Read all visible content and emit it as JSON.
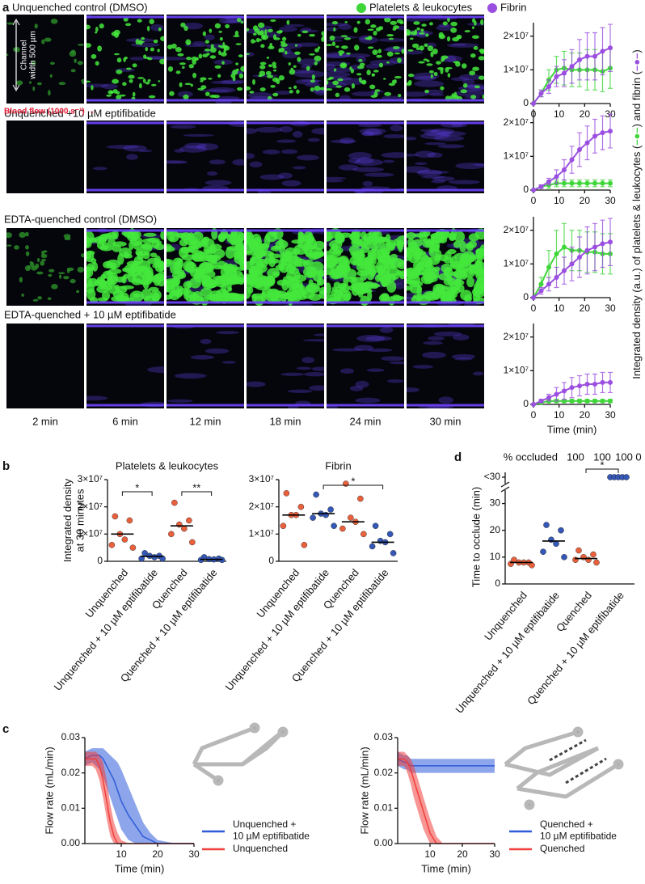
{
  "panel_labels": [
    "a",
    "b",
    "c",
    "d"
  ],
  "images": {
    "rows": [
      "Unquenched control (DMSO)",
      "Unquenched +10 µM eptifibatide",
      "EDTA-quenched control (DMSO)",
      "EDTA-quenched + 10 µM eptifibatide"
    ],
    "times": [
      "2 min",
      "6 min",
      "12 min",
      "18 min",
      "24 min",
      "30 min"
    ],
    "channel_label": [
      "Channel",
      "width 500 µm"
    ],
    "flow_label": "Blood flow (1000 s⁻¹) →"
  },
  "shared_ylabel": [
    "Integrated density (a.u.) of platelets & leukocytes (",
    "–●–",
    ") and fibrin (",
    "–●–",
    ")"
  ],
  "chart_data": [
    {
      "type": "line",
      "x": [
        0,
        3,
        6,
        9,
        12,
        15,
        18,
        21,
        24,
        27,
        30
      ],
      "series": [
        {
          "name": "Platelets & leukocytes",
          "color": "#3fd63a",
          "values": [
            0,
            3000000,
            7000000,
            10000000,
            10500000,
            10000000,
            10000000,
            10000000,
            10000000,
            9500000,
            10500000
          ],
          "errors": [
            0,
            1000000,
            3000000,
            4000000,
            5000000,
            5000000,
            5000000,
            6000000,
            6000000,
            6000000,
            6000000
          ]
        },
        {
          "name": "Fibrin",
          "color": "#9b4fe0",
          "values": [
            0,
            3000000,
            5000000,
            8000000,
            9000000,
            11000000,
            13000000,
            14000000,
            14000000,
            15500000,
            16500000
          ],
          "errors": [
            0,
            1000000,
            2000000,
            3000000,
            4000000,
            5000000,
            6000000,
            7000000,
            7000000,
            7000000,
            7000000
          ]
        }
      ],
      "xlim": [
        0,
        30
      ],
      "xticks": [
        0,
        10,
        20,
        30
      ],
      "ylim": [
        0,
        24000000
      ],
      "yticks": [
        0,
        {
          "value": 10000000,
          "label": "1×10⁷"
        },
        {
          "value": 20000000,
          "label": "2×10⁷"
        }
      ]
    },
    {
      "type": "line",
      "x": [
        0,
        3,
        6,
        9,
        12,
        15,
        18,
        21,
        24,
        27,
        30
      ],
      "series": [
        {
          "color": "#3fd63a",
          "values": [
            0,
            1000000,
            1500000,
            2000000,
            2000000,
            2000000,
            2000000,
            2000000,
            2000000,
            2000000,
            2000000
          ],
          "errors": [
            0,
            500000,
            1000000,
            1000000,
            1000000,
            1000000,
            1000000,
            1000000,
            1000000,
            1000000,
            1000000
          ]
        },
        {
          "color": "#9b4fe0",
          "values": [
            0,
            1000000,
            2500000,
            4000000,
            6000000,
            9000000,
            12000000,
            14000000,
            16000000,
            17000000,
            17500000
          ],
          "errors": [
            0,
            500000,
            1000000,
            2000000,
            3000000,
            4000000,
            5000000,
            5000000,
            5000000,
            5000000,
            5000000
          ]
        }
      ],
      "xlim": [
        0,
        30
      ],
      "xticks": [
        0,
        10,
        20,
        30
      ],
      "ylim": [
        0,
        24000000
      ],
      "yticks": [
        0,
        {
          "value": 10000000,
          "label": "1×10⁷"
        },
        {
          "value": 20000000,
          "label": "2×10⁷"
        }
      ]
    },
    {
      "type": "line",
      "x": [
        0,
        3,
        6,
        9,
        12,
        15,
        18,
        21,
        24,
        27,
        30
      ],
      "series": [
        {
          "color": "#3fd63a",
          "values": [
            0,
            4000000,
            9000000,
            13000000,
            15000000,
            14000000,
            14000000,
            13500000,
            13500000,
            13000000,
            13000000
          ],
          "errors": [
            0,
            2000000,
            5000000,
            7000000,
            7000000,
            6000000,
            6000000,
            6000000,
            6000000,
            6000000,
            6000000
          ]
        },
        {
          "color": "#9b4fe0",
          "values": [
            0,
            2000000,
            4000000,
            6000000,
            8000000,
            10000000,
            12000000,
            14000000,
            15000000,
            16000000,
            16500000
          ],
          "errors": [
            0,
            1000000,
            2000000,
            3000000,
            4000000,
            5000000,
            6000000,
            7000000,
            7000000,
            7000000,
            7000000
          ]
        }
      ],
      "xlim": [
        0,
        30
      ],
      "xticks": [
        0,
        10,
        20,
        30
      ],
      "ylim": [
        0,
        24000000
      ],
      "yticks": [
        0,
        {
          "value": 10000000,
          "label": "1×10⁷"
        },
        {
          "value": 20000000,
          "label": "2×10⁷"
        }
      ]
    },
    {
      "type": "line",
      "x": [
        0,
        3,
        6,
        9,
        12,
        15,
        18,
        21,
        24,
        27,
        30
      ],
      "series": [
        {
          "color": "#3fd63a",
          "values": [
            0,
            500000,
            1000000,
            1000000,
            1000000,
            1000000,
            1000000,
            1000000,
            1000000,
            1000000,
            1000000
          ],
          "errors": [
            0,
            300000,
            500000,
            500000,
            500000,
            500000,
            500000,
            500000,
            500000,
            500000,
            500000
          ]
        },
        {
          "color": "#9b4fe0",
          "values": [
            0,
            1000000,
            2000000,
            3000000,
            4000000,
            5000000,
            5500000,
            6000000,
            6000000,
            6500000,
            6500000
          ],
          "errors": [
            0,
            500000,
            1000000,
            2000000,
            2500000,
            3000000,
            3000000,
            3000000,
            3000000,
            3000000,
            3000000
          ]
        }
      ],
      "xlim": [
        0,
        30
      ],
      "xticks": [
        0,
        10,
        20,
        30
      ],
      "xlabel": "Time (min)",
      "ylim": [
        0,
        24000000
      ],
      "yticks": [
        0,
        {
          "value": 10000000,
          "label": "1×10⁷"
        },
        {
          "value": 20000000,
          "label": "2×10⁷"
        }
      ]
    },
    {
      "type": "dot",
      "title": "Platelets & leukocytes",
      "ylabel": "Integrated density\nat 30 minutes",
      "categories": [
        "Unquenched",
        "Unquenched + 10 µM eptifibatide",
        "Quenched",
        "Quenched + 10 µM eptifibatide"
      ],
      "colors": [
        "#e8603c",
        "#3557b5",
        "#e8603c",
        "#3557b5"
      ],
      "values": [
        [
          16500000,
          15000000,
          10000000,
          8000000,
          6000000,
          5000000
        ],
        [
          3000000,
          2000000,
          2000000,
          1500000,
          1000000,
          1000000
        ],
        [
          21500000,
          15000000,
          13500000,
          12000000,
          10000000,
          7000000
        ],
        [
          1500000,
          1000000,
          800000,
          700000,
          500000,
          500000
        ]
      ],
      "medians": [
        10000000,
        1800000,
        13000000,
        700000
      ],
      "significance": [
        {
          "from": 0,
          "to": 1,
          "label": "*"
        },
        {
          "from": 2,
          "to": 3,
          "label": "**"
        }
      ],
      "ylim": [
        0,
        30000000
      ],
      "yticks": [
        0,
        {
          "value": 10000000,
          "label": "1×10⁷"
        },
        {
          "value": 20000000,
          "label": "2×10⁷"
        },
        {
          "value": 30000000,
          "label": "3×10⁷"
        }
      ]
    },
    {
      "type": "dot",
      "title": "Fibrin",
      "categories": [
        "Unquenched",
        "Unquenched + 10 µM eptifibatide",
        "Quenched",
        "Quenched + 10 µM eptifibatide"
      ],
      "colors": [
        "#e8603c",
        "#3557b5",
        "#e8603c",
        "#3557b5"
      ],
      "values": [
        [
          25000000,
          20000000,
          17000000,
          17000000,
          13000000,
          6000000
        ],
        [
          24500000,
          19000000,
          17500000,
          17000000,
          16000000,
          13000000
        ],
        [
          28500000,
          23000000,
          16000000,
          14500000,
          12000000,
          10000000
        ],
        [
          13000000,
          10000000,
          7500000,
          7000000,
          5500000,
          3000000
        ]
      ],
      "medians": [
        17000000,
        17500000,
        14500000,
        7000000
      ],
      "significance": [
        {
          "from": 1,
          "to": 3,
          "label": "*"
        }
      ],
      "ylim": [
        0,
        30000000
      ],
      "yticks": [
        0,
        {
          "value": 10000000,
          "label": "1×10⁷"
        },
        {
          "value": 20000000,
          "label": "2×10⁷"
        },
        {
          "value": 30000000,
          "label": "3×10⁷"
        }
      ]
    },
    {
      "type": "dot",
      "ylabel": "Time to occlude (min)",
      "percent_header": "% occluded",
      "percent_occluded": [
        100,
        100,
        100,
        0
      ],
      "break_label": "<30",
      "censored_counts": [
        0,
        0,
        0,
        5
      ],
      "categories": [
        "Unquenched",
        "Unquenched + 10 µM eptifibatide",
        "Quenched",
        "Quenched + 10 µM eptifibatide"
      ],
      "colors": [
        "#e8603c",
        "#3557b5",
        "#e8603c",
        "#3557b5"
      ],
      "values": [
        [
          9,
          8,
          8,
          8,
          7.5,
          7
        ],
        [
          22,
          20,
          16.5,
          15,
          12,
          10
        ],
        [
          12.5,
          11,
          10,
          9,
          9,
          8
        ],
        []
      ],
      "medians": [
        8,
        16,
        9.5,
        null
      ],
      "significance": [
        {
          "from": 2,
          "to": 3,
          "label": "*"
        }
      ],
      "ylim": [
        0,
        35
      ],
      "yticks": [
        0,
        10,
        20,
        30
      ]
    },
    {
      "type": "band",
      "x": [
        0,
        2,
        3,
        4,
        5,
        6,
        7,
        8,
        9,
        10,
        12,
        14,
        16,
        18,
        20,
        25,
        30
      ],
      "series": [
        {
          "name": "Unquenched +\n10 µM eptifibatide",
          "color": "#2f5bd8",
          "values": [
            0.024,
            0.025,
            0.025,
            0.025,
            0.024,
            0.022,
            0.02,
            0.018,
            0.015,
            0.012,
            0.008,
            0.005,
            0.002,
            0.001,
            0,
            0,
            0
          ],
          "lower": [
            0.022,
            0.023,
            0.022,
            0.021,
            0.019,
            0.016,
            0.013,
            0.01,
            0.007,
            0.004,
            0.001,
            0,
            0,
            0,
            0,
            0,
            0
          ],
          "upper": [
            0.026,
            0.027,
            0.027,
            0.027,
            0.027,
            0.026,
            0.025,
            0.024,
            0.023,
            0.021,
            0.016,
            0.011,
            0.006,
            0.003,
            0.001,
            0,
            0
          ]
        },
        {
          "name": "Unquenched",
          "color": "#f0403c",
          "values": [
            0.024,
            0.024,
            0.024,
            0.022,
            0.018,
            0.012,
            0.006,
            0.002,
            0,
            0,
            0,
            0,
            0,
            0,
            0,
            0,
            0
          ],
          "lower": [
            0.022,
            0.022,
            0.021,
            0.018,
            0.013,
            0.007,
            0.002,
            0,
            0,
            0,
            0,
            0,
            0,
            0,
            0,
            0,
            0
          ],
          "upper": [
            0.026,
            0.026,
            0.026,
            0.025,
            0.023,
            0.018,
            0.011,
            0.006,
            0.003,
            0.001,
            0,
            0,
            0,
            0,
            0,
            0,
            0
          ]
        }
      ],
      "xlim": [
        0,
        30
      ],
      "xticks": [
        10,
        20,
        30
      ],
      "xlabel": "Time (min)",
      "ylabel": "Flow rate (mL/min)",
      "ylim": [
        0,
        0.03
      ],
      "yticks": [
        {
          "value": 0,
          "label": "0.00"
        },
        0.01,
        0.02,
        0.03
      ]
    },
    {
      "type": "band",
      "x": [
        0,
        2,
        3,
        4,
        5,
        6,
        7,
        8,
        9,
        10,
        12,
        14,
        16,
        18,
        20,
        25,
        30
      ],
      "series": [
        {
          "name": "Quenched +\n10 µM eptifibatide",
          "color": "#2f5bd8",
          "values": [
            0.024,
            0.023,
            0.023,
            0.022,
            0.022,
            0.022,
            0.022,
            0.022,
            0.022,
            0.022,
            0.022,
            0.022,
            0.022,
            0.022,
            0.022,
            0.022,
            0.022
          ],
          "lower": [
            0.022,
            0.021,
            0.021,
            0.02,
            0.02,
            0.02,
            0.02,
            0.02,
            0.02,
            0.02,
            0.02,
            0.02,
            0.02,
            0.02,
            0.02,
            0.02,
            0.02
          ],
          "upper": [
            0.026,
            0.025,
            0.025,
            0.024,
            0.024,
            0.024,
            0.024,
            0.024,
            0.024,
            0.024,
            0.024,
            0.024,
            0.024,
            0.024,
            0.024,
            0.024,
            0.024
          ]
        },
        {
          "name": "Quenched",
          "color": "#f0403c",
          "values": [
            0.024,
            0.024,
            0.023,
            0.021,
            0.018,
            0.015,
            0.012,
            0.009,
            0.006,
            0.003,
            0,
            0,
            0,
            0,
            0,
            0,
            0
          ],
          "lower": [
            0.022,
            0.022,
            0.02,
            0.017,
            0.013,
            0.01,
            0.007,
            0.004,
            0.002,
            0,
            0,
            0,
            0,
            0,
            0,
            0,
            0
          ],
          "upper": [
            0.026,
            0.026,
            0.025,
            0.024,
            0.022,
            0.019,
            0.016,
            0.013,
            0.01,
            0.007,
            0.002,
            0,
            0,
            0,
            0,
            0,
            0
          ]
        }
      ],
      "xlim": [
        0,
        30
      ],
      "xticks": [
        10,
        20,
        30
      ],
      "xlabel": "Time (min)",
      "ylabel": "Flow rate (mL/min)",
      "ylim": [
        0,
        0.03
      ],
      "yticks": [
        {
          "value": 0,
          "label": "0.00"
        },
        0.01,
        0.02,
        0.03
      ]
    }
  ]
}
